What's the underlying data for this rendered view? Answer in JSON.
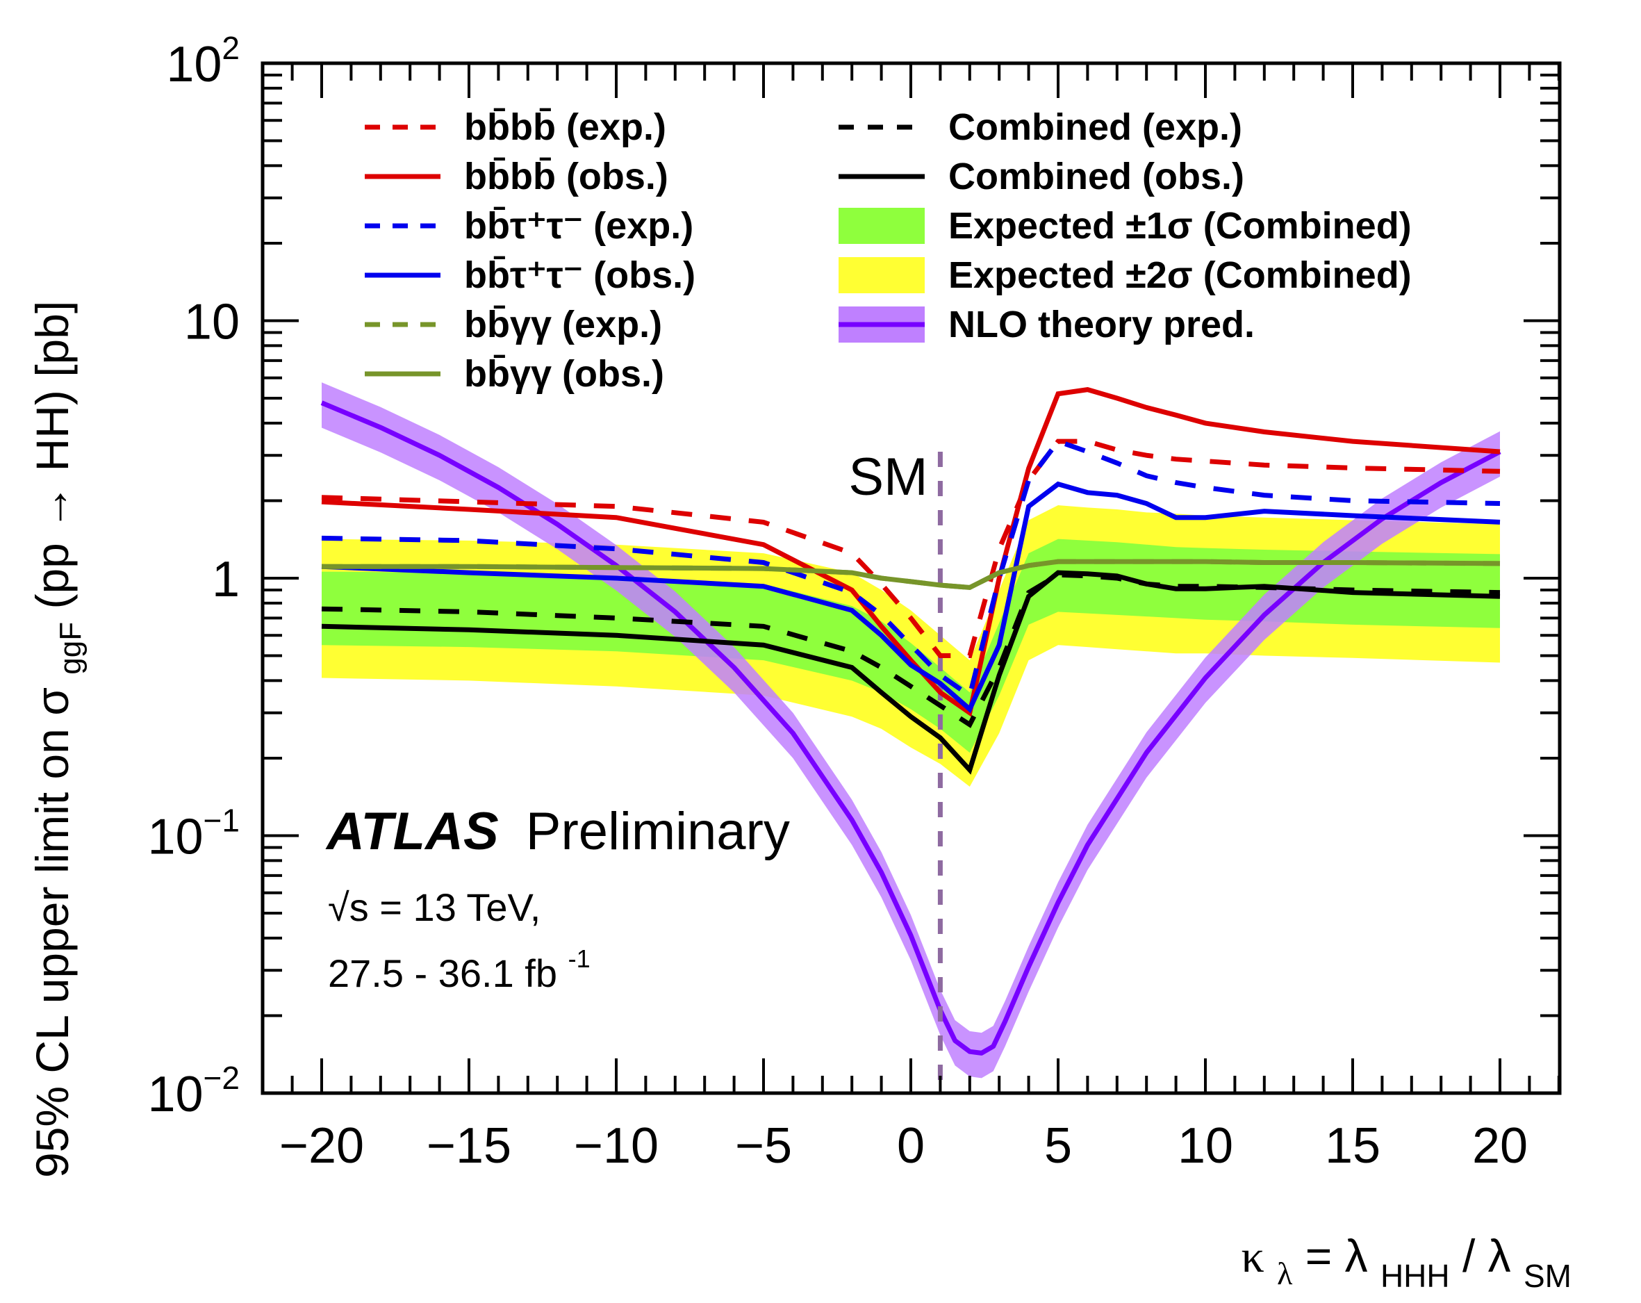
{
  "chart_data": {
    "type": "line",
    "title": "",
    "xlabel": "κλ = λHHH / λSM",
    "xlabel_parts": {
      "kappa": "κ",
      "kappa_sub": "λ",
      "eq": " = λ",
      "sub1": "HHH",
      "slash": " / λ",
      "sub2": "SM"
    },
    "ylabel": "95% CL upper limit on σggF (pp → HH) [pb]",
    "ylabel_parts": {
      "pre": "95% CL upper limit on σ",
      "sub": "ggF",
      "post": " (pp → HH) [pb]"
    },
    "xlim": [
      -22,
      22.5
    ],
    "ylim": [
      0.01,
      100
    ],
    "yscale": "log",
    "x_ticks": [
      -20,
      -15,
      -10,
      -5,
      0,
      5,
      10,
      15,
      20
    ],
    "x_tick_labels": [
      "−20",
      "−15",
      "−10",
      "−5",
      "0",
      "5",
      "10",
      "15",
      "20"
    ],
    "y_ticks": [
      {
        "value": 100,
        "base": "10",
        "exp": "2"
      },
      {
        "value": 10,
        "base": "10",
        "exp": ""
      },
      {
        "value": 1,
        "base": "1",
        "exp": ""
      },
      {
        "value": 0.1,
        "base": "10",
        "exp": "−1"
      },
      {
        "value": 0.01,
        "base": "10",
        "exp": "−2"
      }
    ],
    "sm_line": {
      "x": 1,
      "label": "SM",
      "color": "#8e6aa0"
    },
    "x": [
      -20,
      -15,
      -10,
      -5,
      -2,
      -1,
      0,
      1,
      2,
      3,
      4,
      5,
      6,
      7,
      8,
      9,
      10,
      12,
      15,
      20
    ],
    "bands": [
      {
        "name": "Expected ±2σ (Combined)",
        "color": "#ffff33",
        "low": [
          0.41,
          0.4,
          0.38,
          0.35,
          0.29,
          0.26,
          0.22,
          0.19,
          0.155,
          0.25,
          0.48,
          0.55,
          0.54,
          0.53,
          0.52,
          0.51,
          0.51,
          0.5,
          0.49,
          0.47
        ],
        "high": [
          1.42,
          1.4,
          1.35,
          1.25,
          1.05,
          0.9,
          0.75,
          0.6,
          0.48,
          0.9,
          1.68,
          1.92,
          1.88,
          1.85,
          1.8,
          1.78,
          1.75,
          1.72,
          1.68,
          1.62
        ]
      },
      {
        "name": "Expected ±1σ (Combined)",
        "color": "#8fff3d",
        "low": [
          0.55,
          0.54,
          0.52,
          0.48,
          0.4,
          0.36,
          0.31,
          0.26,
          0.21,
          0.35,
          0.66,
          0.74,
          0.73,
          0.72,
          0.71,
          0.7,
          0.69,
          0.68,
          0.66,
          0.64
        ],
        "high": [
          1.06,
          1.05,
          1.02,
          0.95,
          0.78,
          0.68,
          0.56,
          0.45,
          0.36,
          0.67,
          1.25,
          1.42,
          1.4,
          1.38,
          1.35,
          1.32,
          1.31,
          1.29,
          1.27,
          1.24
        ]
      }
    ],
    "series": [
      {
        "name": "bb̄bb̄ (exp.)",
        "color": "#dd0000",
        "dash": true,
        "values": [
          2.06,
          1.98,
          1.9,
          1.65,
          1.25,
          0.95,
          0.7,
          0.5,
          0.5,
          1.3,
          2.4,
          3.4,
          3.4,
          3.15,
          3.0,
          2.9,
          2.85,
          2.75,
          2.68,
          2.6
        ]
      },
      {
        "name": "bb̄bb̄ (obs.)",
        "color": "#dd0000",
        "dash": false,
        "values": [
          1.98,
          1.85,
          1.72,
          1.35,
          0.9,
          0.65,
          0.48,
          0.36,
          0.3,
          1.0,
          2.67,
          5.2,
          5.4,
          5.0,
          4.6,
          4.3,
          4.0,
          3.7,
          3.4,
          3.1
        ]
      },
      {
        "name": "bb̄τ⁺τ⁻ (exp.)",
        "color": "#0000ee",
        "dash": true,
        "values": [
          1.43,
          1.4,
          1.3,
          1.15,
          0.88,
          0.72,
          0.55,
          0.42,
          0.35,
          1.0,
          2.4,
          3.4,
          3.1,
          2.8,
          2.5,
          2.35,
          2.25,
          2.1,
          2.0,
          1.95
        ]
      },
      {
        "name": "bb̄τ⁺τ⁻ (obs.)",
        "color": "#0000ee",
        "dash": false,
        "values": [
          1.11,
          1.05,
          1.0,
          0.93,
          0.75,
          0.6,
          0.46,
          0.39,
          0.31,
          0.55,
          1.9,
          2.32,
          2.15,
          2.1,
          1.95,
          1.72,
          1.72,
          1.82,
          1.75,
          1.65
        ]
      },
      {
        "name": "bb̄γγ (exp.)",
        "color": "#77952a",
        "dash": true,
        "values": [
          1.11,
          1.11,
          1.1,
          1.09,
          1.05,
          1.0,
          0.97,
          0.94,
          0.92,
          1.05,
          1.12,
          1.16,
          1.16,
          1.16,
          1.16,
          1.16,
          1.16,
          1.15,
          1.15,
          1.14
        ]
      },
      {
        "name": "bb̄γγ (obs.)",
        "color": "#77952a",
        "dash": false,
        "values": [
          1.11,
          1.11,
          1.1,
          1.09,
          1.05,
          1.0,
          0.97,
          0.94,
          0.92,
          1.05,
          1.12,
          1.16,
          1.16,
          1.16,
          1.16,
          1.16,
          1.16,
          1.15,
          1.15,
          1.14
        ]
      },
      {
        "name": "Combined (exp.)",
        "color": "#000000",
        "dash": true,
        "values": [
          0.76,
          0.74,
          0.7,
          0.65,
          0.52,
          0.45,
          0.38,
          0.32,
          0.27,
          0.45,
          0.88,
          1.03,
          1.02,
          1.0,
          0.95,
          0.93,
          0.93,
          0.92,
          0.9,
          0.88
        ]
      },
      {
        "name": "Combined (obs.)",
        "color": "#000000",
        "dash": false,
        "values": [
          0.65,
          0.63,
          0.6,
          0.55,
          0.45,
          0.36,
          0.29,
          0.24,
          0.18,
          0.42,
          0.85,
          1.05,
          1.04,
          1.02,
          0.95,
          0.91,
          0.91,
          0.93,
          0.88,
          0.85
        ]
      }
    ],
    "theory": {
      "name": "NLO theory pred.",
      "line_color": "#7700ff",
      "band_color": "#bf80ff",
      "relative_uncertainty": 0.2,
      "x": [
        -20,
        -18,
        -16,
        -14,
        -12,
        -10,
        -8,
        -6,
        -4,
        -2,
        -1,
        0,
        1,
        1.5,
        2,
        2.4,
        2.8,
        3.2,
        4,
        5,
        6,
        8,
        10,
        12,
        14,
        16,
        18,
        20
      ],
      "values": [
        4.8,
        3.85,
        3.0,
        2.25,
        1.62,
        1.12,
        0.74,
        0.45,
        0.25,
        0.115,
        0.072,
        0.041,
        0.021,
        0.016,
        0.0145,
        0.0143,
        0.0152,
        0.019,
        0.031,
        0.055,
        0.092,
        0.21,
        0.41,
        0.72,
        1.15,
        1.7,
        2.35,
        3.1
      ]
    },
    "legend": {
      "placement": "top",
      "left_column": [
        {
          "label": "bb̄bb̄ (exp.)",
          "color": "#dd0000",
          "style": "dashed"
        },
        {
          "label": "bb̄bb̄ (obs.)",
          "color": "#dd0000",
          "style": "solid"
        },
        {
          "label": "bb̄τ⁺τ⁻ (exp.)",
          "color": "#0000ee",
          "style": "dashed"
        },
        {
          "label": "bb̄τ⁺τ⁻ (obs.)",
          "color": "#0000ee",
          "style": "solid"
        },
        {
          "label": "bb̄γγ (exp.)",
          "color": "#77952a",
          "style": "dashed"
        },
        {
          "label": "bb̄γγ (obs.)",
          "color": "#77952a",
          "style": "solid"
        }
      ],
      "right_column": [
        {
          "label": "Combined (exp.)",
          "color": "#000000",
          "style": "dashed"
        },
        {
          "label": "Combined (obs.)",
          "color": "#000000",
          "style": "solid"
        },
        {
          "label": "Expected  ±1σ (Combined)",
          "color": "#8fff3d",
          "style": "box"
        },
        {
          "label": "Expected  ±2σ (Combined)",
          "color": "#ffff33",
          "style": "box"
        },
        {
          "label": "NLO theory pred.",
          "color": "#bf80ff",
          "line_color": "#7700ff",
          "style": "band"
        }
      ]
    },
    "annotations": {
      "experiment": "ATLAS",
      "status": "Preliminary",
      "energy": "√s = 13 TeV,",
      "lumi": "27.5 - 36.1 fb",
      "lumi_exp": "-1"
    },
    "grid": false
  }
}
